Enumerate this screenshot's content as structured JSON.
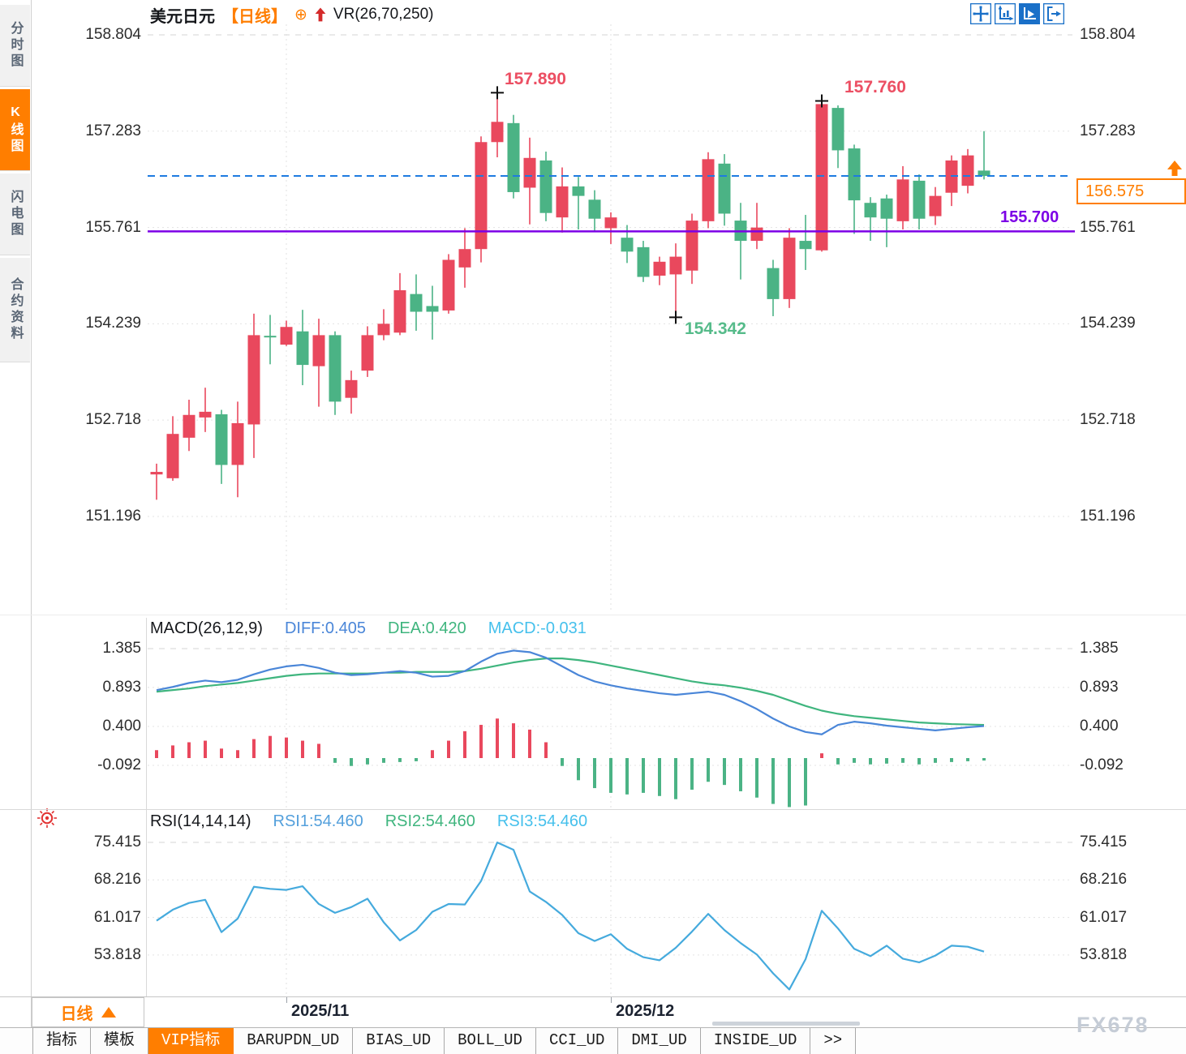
{
  "app": {
    "watermark": "FX678"
  },
  "sidebar": {
    "tabs": [
      {
        "label": "分时图",
        "active": false
      },
      {
        "label": "K线图",
        "active": true
      },
      {
        "label": "闪电图",
        "active": false
      },
      {
        "label": "合约资料",
        "active": false
      }
    ]
  },
  "header": {
    "symbol": "美元日元",
    "period_tag": "【日线】",
    "add_icon": "⊕",
    "indicator_label": "VR(26,70,250)"
  },
  "toolbar": {
    "icons": [
      {
        "name": "pan-crosshair-icon",
        "active": false
      },
      {
        "name": "axis-zoom-icon",
        "active": false
      },
      {
        "name": "axis-play-icon",
        "active": true
      },
      {
        "name": "exit-chart-icon",
        "active": false
      }
    ]
  },
  "colors": {
    "up": "#e9485d",
    "down": "#4bb385",
    "macd_diff": "#4a86d8",
    "macd_dea": "#3fb57e",
    "rsi_line": "#45aadd",
    "last_price_line": "#1e7be0",
    "hline": "#7c00e6",
    "accent_orange": "#ff7e00",
    "annotation_up": "#ec4f63",
    "annotation_down": "#56bb8a",
    "grid": "#e3e3e3",
    "grid_dash": "#d4d4d4",
    "month_grid": "#e0e0e0",
    "toolbar_blue": "#1a70c8",
    "marker_cross": "#111111"
  },
  "main_chart": {
    "y_ticks": [
      "158.804",
      "157.283",
      "155.761",
      "154.239",
      "152.718",
      "151.196"
    ],
    "last_price": {
      "label": "156.575",
      "value": 156.575
    },
    "hline": {
      "label": "155.700",
      "value": 155.7
    },
    "annotations": [
      {
        "label": "157.890",
        "color": "up"
      },
      {
        "label": "157.760",
        "color": "up"
      },
      {
        "label": "154.342",
        "color": "down"
      }
    ]
  },
  "macd_panel": {
    "title": "MACD(26,12,9)",
    "diff_label": "DIFF:0.405",
    "dea_label": "DEA:0.420",
    "macd_label": "MACD:-0.031",
    "y_ticks": [
      "1.385",
      "0.893",
      "0.400",
      "-0.092"
    ]
  },
  "rsi_panel": {
    "title": "RSI(14,14,14)",
    "rsi1_label": "RSI1:54.460",
    "rsi2_label": "RSI2:54.460",
    "rsi3_label": "RSI3:54.460",
    "y_ticks": [
      "75.415",
      "68.216",
      "61.017",
      "53.818"
    ]
  },
  "xaxis": {
    "months": [
      {
        "label": "2025/11",
        "candle_index": 8
      },
      {
        "label": "2025/12",
        "candle_index": 28
      }
    ]
  },
  "period_selector": {
    "label": "日线"
  },
  "bottom_tabs": [
    {
      "label": "指标",
      "active": false
    },
    {
      "label": "模板",
      "active": false
    },
    {
      "label": "VIP指标",
      "active": true
    },
    {
      "label": "BARUPDN_UD",
      "active": false
    },
    {
      "label": "BIAS_UD",
      "active": false
    },
    {
      "label": "BOLL_UD",
      "active": false
    },
    {
      "label": "CCI_UD",
      "active": false
    },
    {
      "label": "DMI_UD",
      "active": false
    },
    {
      "label": "INSIDE_UD",
      "active": false
    },
    {
      "label": ">>",
      "active": false
    }
  ],
  "chart_data": [
    {
      "type": "candlestick",
      "symbol": "美元日元",
      "period": "日线",
      "ylim": [
        151.196,
        158.804
      ],
      "up_means": "close>=open (red)",
      "candles": [
        [
          151.86,
          152.03,
          151.46,
          151.9
        ],
        [
          151.8,
          152.78,
          151.76,
          152.5
        ],
        [
          152.44,
          153.04,
          152.23,
          152.8
        ],
        [
          152.76,
          153.23,
          152.53,
          152.85
        ],
        [
          152.81,
          152.88,
          151.71,
          152.01
        ],
        [
          152.01,
          153.01,
          151.5,
          152.67
        ],
        [
          152.65,
          154.4,
          152.12,
          154.06
        ],
        [
          154.05,
          154.38,
          153.6,
          154.03
        ],
        [
          153.91,
          154.29,
          153.89,
          154.19
        ],
        [
          154.12,
          154.46,
          153.27,
          153.59
        ],
        [
          153.57,
          154.32,
          152.93,
          154.06
        ],
        [
          154.06,
          154.12,
          152.8,
          153.01
        ],
        [
          153.07,
          153.5,
          152.82,
          153.35
        ],
        [
          153.5,
          154.2,
          153.4,
          154.06
        ],
        [
          154.06,
          154.47,
          153.98,
          154.24
        ],
        [
          154.1,
          155.04,
          154.06,
          154.77
        ],
        [
          154.71,
          155.02,
          154.13,
          154.43
        ],
        [
          154.52,
          154.84,
          153.99,
          154.43
        ],
        [
          154.45,
          155.34,
          154.4,
          155.25
        ],
        [
          155.13,
          155.75,
          154.81,
          155.42
        ],
        [
          155.42,
          157.2,
          155.21,
          157.11
        ],
        [
          157.11,
          157.89,
          156.87,
          157.43
        ],
        [
          157.41,
          157.54,
          156.22,
          156.32
        ],
        [
          156.39,
          157.18,
          155.81,
          156.86
        ],
        [
          156.82,
          156.96,
          155.86,
          155.99
        ],
        [
          155.92,
          156.71,
          155.68,
          156.41
        ],
        [
          156.41,
          156.56,
          155.73,
          156.26
        ],
        [
          156.2,
          156.35,
          155.7,
          155.9
        ],
        [
          155.75,
          156.0,
          155.5,
          155.92
        ],
        [
          155.6,
          155.8,
          155.2,
          155.38
        ],
        [
          155.45,
          155.55,
          154.9,
          154.98
        ],
        [
          155.0,
          155.3,
          154.85,
          155.22
        ],
        [
          155.02,
          155.51,
          154.342,
          155.3
        ],
        [
          155.08,
          155.98,
          154.87,
          155.87
        ],
        [
          155.86,
          156.95,
          155.75,
          156.84
        ],
        [
          156.77,
          156.92,
          155.79,
          155.98
        ],
        [
          155.87,
          156.15,
          154.94,
          155.55
        ],
        [
          155.55,
          156.15,
          155.42,
          155.76
        ],
        [
          155.12,
          155.25,
          154.36,
          154.63
        ],
        [
          154.63,
          155.75,
          154.49,
          155.6
        ],
        [
          155.55,
          155.96,
          155.09,
          155.42
        ],
        [
          155.4,
          157.76,
          155.38,
          157.71
        ],
        [
          157.65,
          157.69,
          156.7,
          156.98
        ],
        [
          157.01,
          157.07,
          155.66,
          156.19
        ],
        [
          156.15,
          156.24,
          155.55,
          155.92
        ],
        [
          156.22,
          156.28,
          155.45,
          155.9
        ],
        [
          155.86,
          156.73,
          155.73,
          156.52
        ],
        [
          156.5,
          156.6,
          155.73,
          155.9
        ],
        [
          155.94,
          156.4,
          155.8,
          156.26
        ],
        [
          156.31,
          156.9,
          156.1,
          156.82
        ],
        [
          156.42,
          157.0,
          156.3,
          156.9
        ],
        [
          156.66,
          157.283,
          156.52,
          156.575
        ]
      ],
      "markers": [
        {
          "index": 21,
          "price": 157.89,
          "position": "high",
          "label": "157.890"
        },
        {
          "index": 32,
          "price": 154.342,
          "position": "low",
          "label": "154.342"
        },
        {
          "index": 41,
          "price": 157.76,
          "position": "high",
          "label": "157.760"
        }
      ]
    },
    {
      "type": "macd",
      "params": "26,12,9",
      "current": {
        "diff": 0.405,
        "dea": 0.42,
        "macd": -0.031
      },
      "ylim": [
        -0.67,
        1.45
      ],
      "diff": [
        0.86,
        0.9,
        0.95,
        0.98,
        0.96,
        0.99,
        1.06,
        1.12,
        1.16,
        1.18,
        1.14,
        1.08,
        1.05,
        1.06,
        1.08,
        1.1,
        1.08,
        1.03,
        1.04,
        1.1,
        1.22,
        1.32,
        1.36,
        1.34,
        1.27,
        1.16,
        1.05,
        0.97,
        0.92,
        0.88,
        0.85,
        0.82,
        0.8,
        0.82,
        0.84,
        0.8,
        0.72,
        0.62,
        0.5,
        0.4,
        0.33,
        0.3,
        0.42,
        0.46,
        0.44,
        0.41,
        0.39,
        0.37,
        0.35,
        0.37,
        0.39,
        0.405
      ],
      "dea": [
        0.84,
        0.86,
        0.88,
        0.91,
        0.93,
        0.95,
        0.98,
        1.01,
        1.04,
        1.06,
        1.07,
        1.07,
        1.07,
        1.07,
        1.08,
        1.08,
        1.09,
        1.09,
        1.09,
        1.1,
        1.13,
        1.17,
        1.21,
        1.24,
        1.26,
        1.26,
        1.24,
        1.21,
        1.17,
        1.13,
        1.09,
        1.05,
        1.01,
        0.97,
        0.94,
        0.92,
        0.89,
        0.85,
        0.8,
        0.73,
        0.66,
        0.6,
        0.56,
        0.53,
        0.51,
        0.49,
        0.47,
        0.45,
        0.44,
        0.43,
        0.425,
        0.42
      ],
      "histogram": [
        0.1,
        0.16,
        0.2,
        0.22,
        0.12,
        0.1,
        0.24,
        0.28,
        0.26,
        0.22,
        0.18,
        -0.06,
        -0.1,
        -0.08,
        -0.06,
        -0.05,
        -0.04,
        0.1,
        0.22,
        0.34,
        0.42,
        0.5,
        0.44,
        0.36,
        0.2,
        -0.1,
        -0.28,
        -0.38,
        -0.44,
        -0.46,
        -0.44,
        -0.48,
        -0.52,
        -0.4,
        -0.3,
        -0.34,
        -0.42,
        -0.5,
        -0.58,
        -0.62,
        -0.6,
        0.06,
        -0.08,
        -0.06,
        -0.08,
        -0.07,
        -0.06,
        -0.08,
        -0.06,
        -0.05,
        -0.04,
        -0.031
      ]
    },
    {
      "type": "line",
      "name": "RSI",
      "params": "14,14,14",
      "current": {
        "rsi1": 54.46,
        "rsi2": 54.46,
        "rsi3": 54.46
      },
      "ylim": [
        45,
        78
      ],
      "values": [
        60.4,
        62.5,
        63.8,
        64.4,
        58.2,
        60.8,
        66.9,
        66.5,
        66.3,
        67.0,
        63.6,
        61.9,
        63.0,
        64.6,
        60.1,
        56.6,
        58.6,
        62.1,
        63.6,
        63.5,
        68.0,
        75.4,
        74.0,
        66.0,
        64.0,
        61.5,
        58.0,
        56.5,
        57.8,
        55.0,
        53.4,
        52.8,
        55.2,
        58.3,
        61.7,
        58.6,
        56.1,
        53.9,
        50.3,
        47.2,
        53.0,
        62.3,
        58.9,
        55.0,
        53.6,
        55.6,
        53.1,
        52.4,
        53.7,
        55.6,
        55.4,
        54.46
      ]
    }
  ]
}
